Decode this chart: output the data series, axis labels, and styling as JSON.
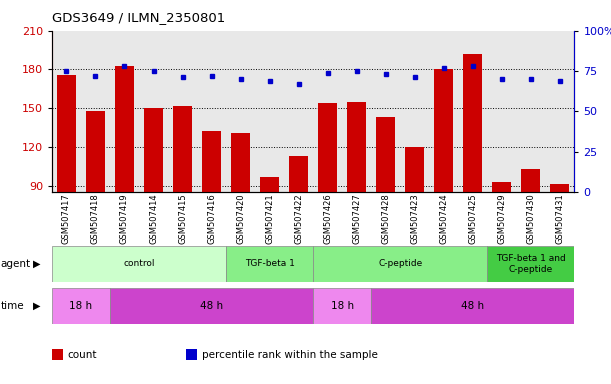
{
  "title": "GDS3649 / ILMN_2350801",
  "samples": [
    "GSM507417",
    "GSM507418",
    "GSM507419",
    "GSM507414",
    "GSM507415",
    "GSM507416",
    "GSM507420",
    "GSM507421",
    "GSM507422",
    "GSM507426",
    "GSM507427",
    "GSM507428",
    "GSM507423",
    "GSM507424",
    "GSM507425",
    "GSM507429",
    "GSM507430",
    "GSM507431"
  ],
  "counts": [
    176,
    148,
    183,
    150,
    152,
    132,
    131,
    97,
    113,
    154,
    155,
    143,
    120,
    180,
    192,
    93,
    103,
    91
  ],
  "percentiles": [
    75,
    72,
    78,
    75,
    71,
    72,
    70,
    69,
    67,
    74,
    75,
    73,
    71,
    77,
    78,
    70,
    70,
    69
  ],
  "ylim_left": [
    85,
    210
  ],
  "ylim_right": [
    0,
    100
  ],
  "yticks_left": [
    90,
    120,
    150,
    180,
    210
  ],
  "yticks_right": [
    0,
    25,
    50,
    75,
    100
  ],
  "bar_color": "#cc0000",
  "dot_color": "#0000cc",
  "plot_bg": "#e8e8e8",
  "agent_groups": [
    {
      "label": "control",
      "start": 0,
      "end": 6,
      "color": "#ccffcc"
    },
    {
      "label": "TGF-beta 1",
      "start": 6,
      "end": 9,
      "color": "#88ee88"
    },
    {
      "label": "C-peptide",
      "start": 9,
      "end": 15,
      "color": "#88ee88"
    },
    {
      "label": "TGF-beta 1 and\nC-peptide",
      "start": 15,
      "end": 18,
      "color": "#44cc44"
    }
  ],
  "time_groups": [
    {
      "label": "18 h",
      "start": 0,
      "end": 2,
      "color": "#ee88ee"
    },
    {
      "label": "48 h",
      "start": 2,
      "end": 9,
      "color": "#cc44cc"
    },
    {
      "label": "18 h",
      "start": 9,
      "end": 11,
      "color": "#ee88ee"
    },
    {
      "label": "48 h",
      "start": 11,
      "end": 18,
      "color": "#cc44cc"
    }
  ],
  "legend_items": [
    {
      "label": "count",
      "color": "#cc0000"
    },
    {
      "label": "percentile rank within the sample",
      "color": "#0000cc"
    }
  ]
}
